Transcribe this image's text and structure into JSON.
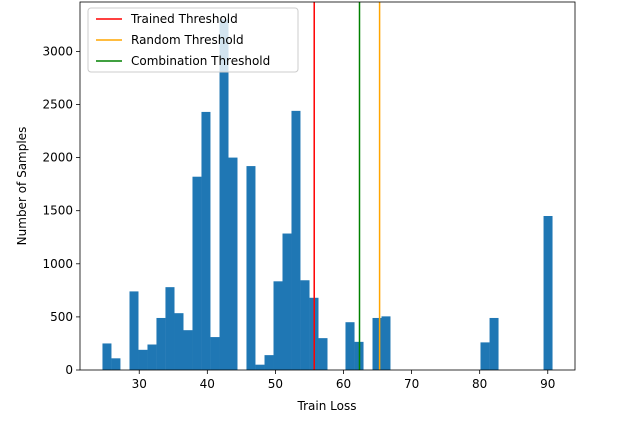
{
  "chart_data": {
    "type": "histogram",
    "xlabel": "Train Loss",
    "ylabel": "Number of Samples",
    "color": "#1f77b4",
    "bins": [
      24.6,
      25.92,
      27.24,
      28.57,
      29.89,
      31.21,
      32.53,
      33.85,
      35.18,
      36.5,
      37.82,
      39.14,
      40.46,
      41.79,
      43.11,
      44.43,
      45.75,
      47.07,
      48.4,
      49.72,
      51.04,
      52.36,
      53.68,
      55.01,
      56.33,
      57.65,
      58.97,
      60.29,
      61.62,
      62.94,
      64.26,
      65.58,
      66.9,
      68.23,
      69.55,
      70.87,
      72.19,
      73.51,
      74.84,
      76.16,
      77.48,
      78.8,
      80.12,
      81.45,
      82.77,
      84.09,
      85.41,
      86.73,
      88.06,
      89.38,
      90.7
    ],
    "counts": [
      250,
      110,
      0,
      740,
      190,
      240,
      490,
      780,
      535,
      375,
      1820,
      2430,
      310,
      3300,
      2000,
      0,
      1920,
      50,
      140,
      835,
      1285,
      2440,
      845,
      680,
      300,
      0,
      0,
      450,
      265,
      0,
      490,
      505,
      0,
      0,
      0,
      0,
      0,
      0,
      0,
      0,
      0,
      0,
      260,
      490,
      0,
      0,
      0,
      0,
      0,
      1450
    ],
    "lines": [
      {
        "name": "Trained Threshold",
        "color": "#ff0000",
        "x": 55.7
      },
      {
        "name": "Random Threshold",
        "color": "#ffa500",
        "x": 65.3
      },
      {
        "name": "Combination Threshold",
        "color": "#008000",
        "x": 62.35
      }
    ],
    "xlim": [
      21.3,
      94.0
    ],
    "ylim": [
      0,
      3465
    ],
    "xticks": [
      30,
      40,
      50,
      60,
      70,
      80,
      90
    ],
    "yticks": [
      0,
      500,
      1000,
      1500,
      2000,
      2500,
      3000
    ],
    "legend": "upper left"
  }
}
